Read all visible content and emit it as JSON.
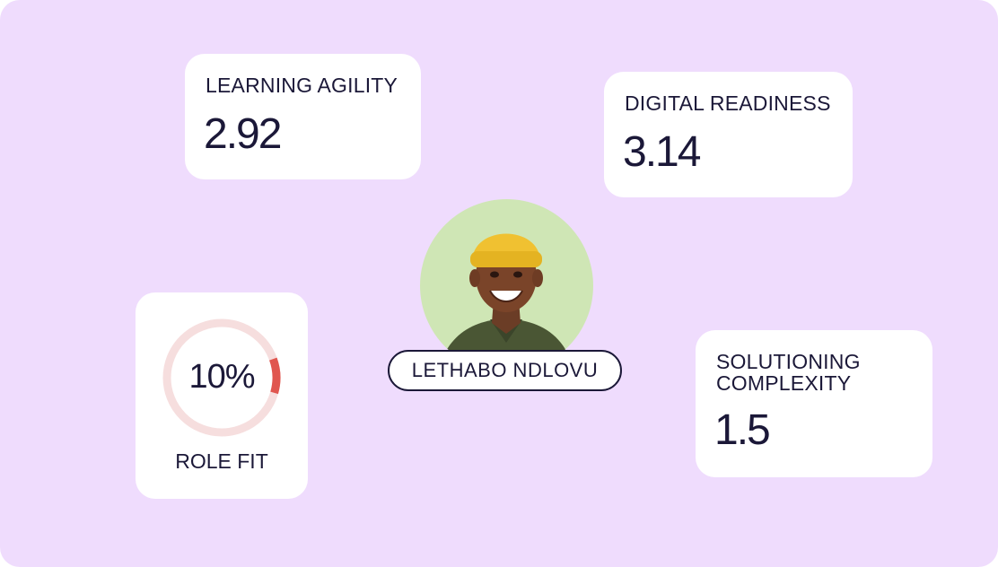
{
  "metrics": {
    "learning_agility": {
      "label": "LEARNING AGILITY",
      "value": "2.92"
    },
    "digital_readiness": {
      "label": "DIGITAL READINESS",
      "value": "3.14"
    },
    "solutioning_complexity": {
      "label": "SOLUTIONING COMPLEXITY",
      "value": "1.5"
    }
  },
  "role_fit": {
    "value_text": "10%",
    "fraction": 0.1,
    "label": "ROLE FIT",
    "ring_color": "#f6dede",
    "progress_color": "#e0564f"
  },
  "profile": {
    "name": "LETHABO NDLOVU",
    "avatar_icon": "person-photo-icon",
    "avatar_bg": "#cfe6b5"
  },
  "colors": {
    "background": "#efdcfd",
    "card": "#ffffff",
    "text": "#1b1838"
  }
}
